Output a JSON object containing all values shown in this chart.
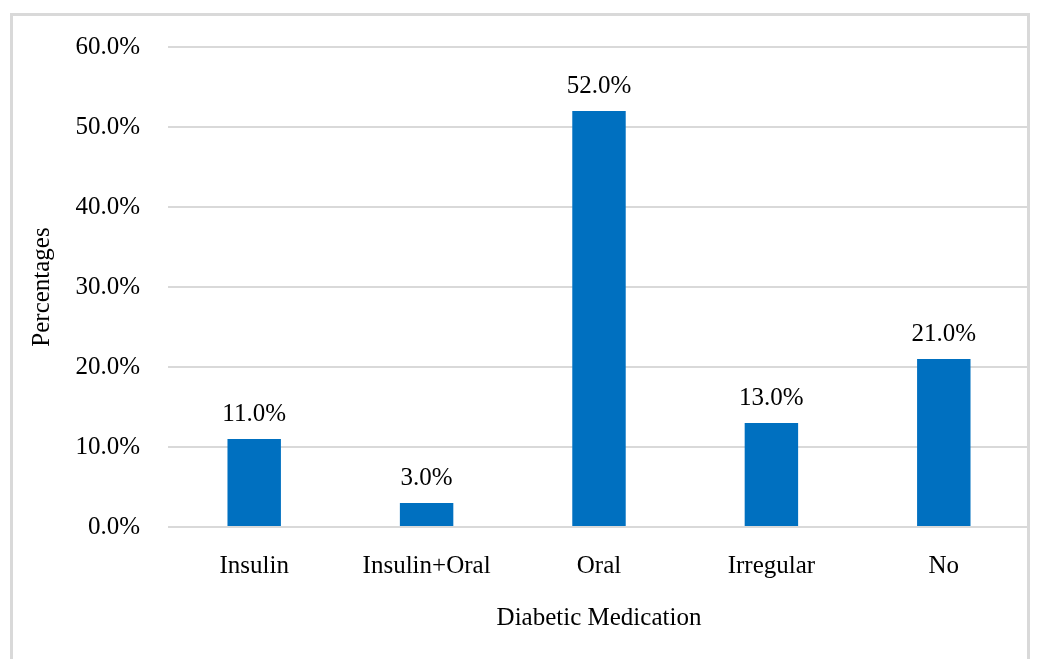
{
  "chart_data": {
    "type": "bar",
    "xlabel": "Diabetic Medication",
    "ylabel": "Percentages",
    "categories": [
      "Insulin",
      "Insulin+Oral",
      "Oral",
      "Irregular",
      "No"
    ],
    "values": [
      11,
      3,
      52,
      13,
      21
    ],
    "value_labels": [
      "11.0%",
      "3.0%",
      "52.0%",
      "13.0%",
      "21.0%"
    ],
    "color": "#0070c0",
    "ylim": [
      0,
      60
    ],
    "yticks": [
      {
        "value": 0,
        "label": "0.0%"
      },
      {
        "value": 10,
        "label": "10.0%"
      },
      {
        "value": 20,
        "label": "20.0%"
      },
      {
        "value": 30,
        "label": "30.0%"
      },
      {
        "value": 40,
        "label": "40.0%"
      },
      {
        "value": 50,
        "label": "50.0%"
      },
      {
        "value": 60,
        "label": "60.0%"
      }
    ],
    "grid": "y"
  }
}
